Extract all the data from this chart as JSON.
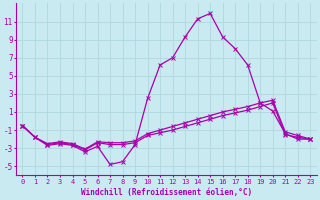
{
  "xlabel": "Windchill (Refroidissement éolien,°C)",
  "background_color": "#c8eaf0",
  "grid_color": "#b0d8e0",
  "line_color": "#aa00aa",
  "x_values": [
    0,
    1,
    2,
    3,
    4,
    5,
    6,
    7,
    8,
    9,
    10,
    11,
    12,
    13,
    14,
    15,
    16,
    17,
    18,
    19,
    20,
    21,
    22,
    23
  ],
  "line1_y": [
    -0.5,
    -1.8,
    -2.7,
    -2.5,
    -2.7,
    -3.4,
    -2.8,
    -4.8,
    -4.5,
    -2.6,
    2.5,
    6.2,
    7.0,
    9.3,
    11.3,
    11.9,
    9.3,
    8.0,
    6.2,
    2.0,
    1.1,
    -1.4,
    -2.0,
    -2.0
  ],
  "line2_y": [
    -0.5,
    -1.8,
    -2.6,
    -2.4,
    -2.6,
    -3.2,
    -2.4,
    -2.6,
    -2.6,
    -2.4,
    -1.6,
    -1.3,
    -1.0,
    -0.6,
    -0.2,
    0.2,
    0.6,
    0.9,
    1.2,
    1.6,
    2.0,
    -1.5,
    -1.8,
    -2.0
  ],
  "line3_y": [
    -0.5,
    -1.8,
    -2.5,
    -2.3,
    -2.5,
    -3.1,
    -2.3,
    -2.4,
    -2.4,
    -2.2,
    -1.4,
    -1.0,
    -0.6,
    -0.2,
    0.2,
    0.6,
    1.0,
    1.3,
    1.6,
    2.0,
    2.3,
    -1.2,
    -1.6,
    -2.0
  ],
  "ylim": [
    -6,
    13
  ],
  "xlim": [
    -0.5,
    23.5
  ],
  "yticks": [
    -5,
    -3,
    -1,
    1,
    3,
    5,
    7,
    9,
    11
  ],
  "xticks": [
    0,
    1,
    2,
    3,
    4,
    5,
    6,
    7,
    8,
    9,
    10,
    11,
    12,
    13,
    14,
    15,
    16,
    17,
    18,
    19,
    20,
    21,
    22,
    23
  ],
  "tick_fontsize": 5,
  "xlabel_fontsize": 5.5,
  "linewidth": 0.9,
  "markersize": 2.5
}
